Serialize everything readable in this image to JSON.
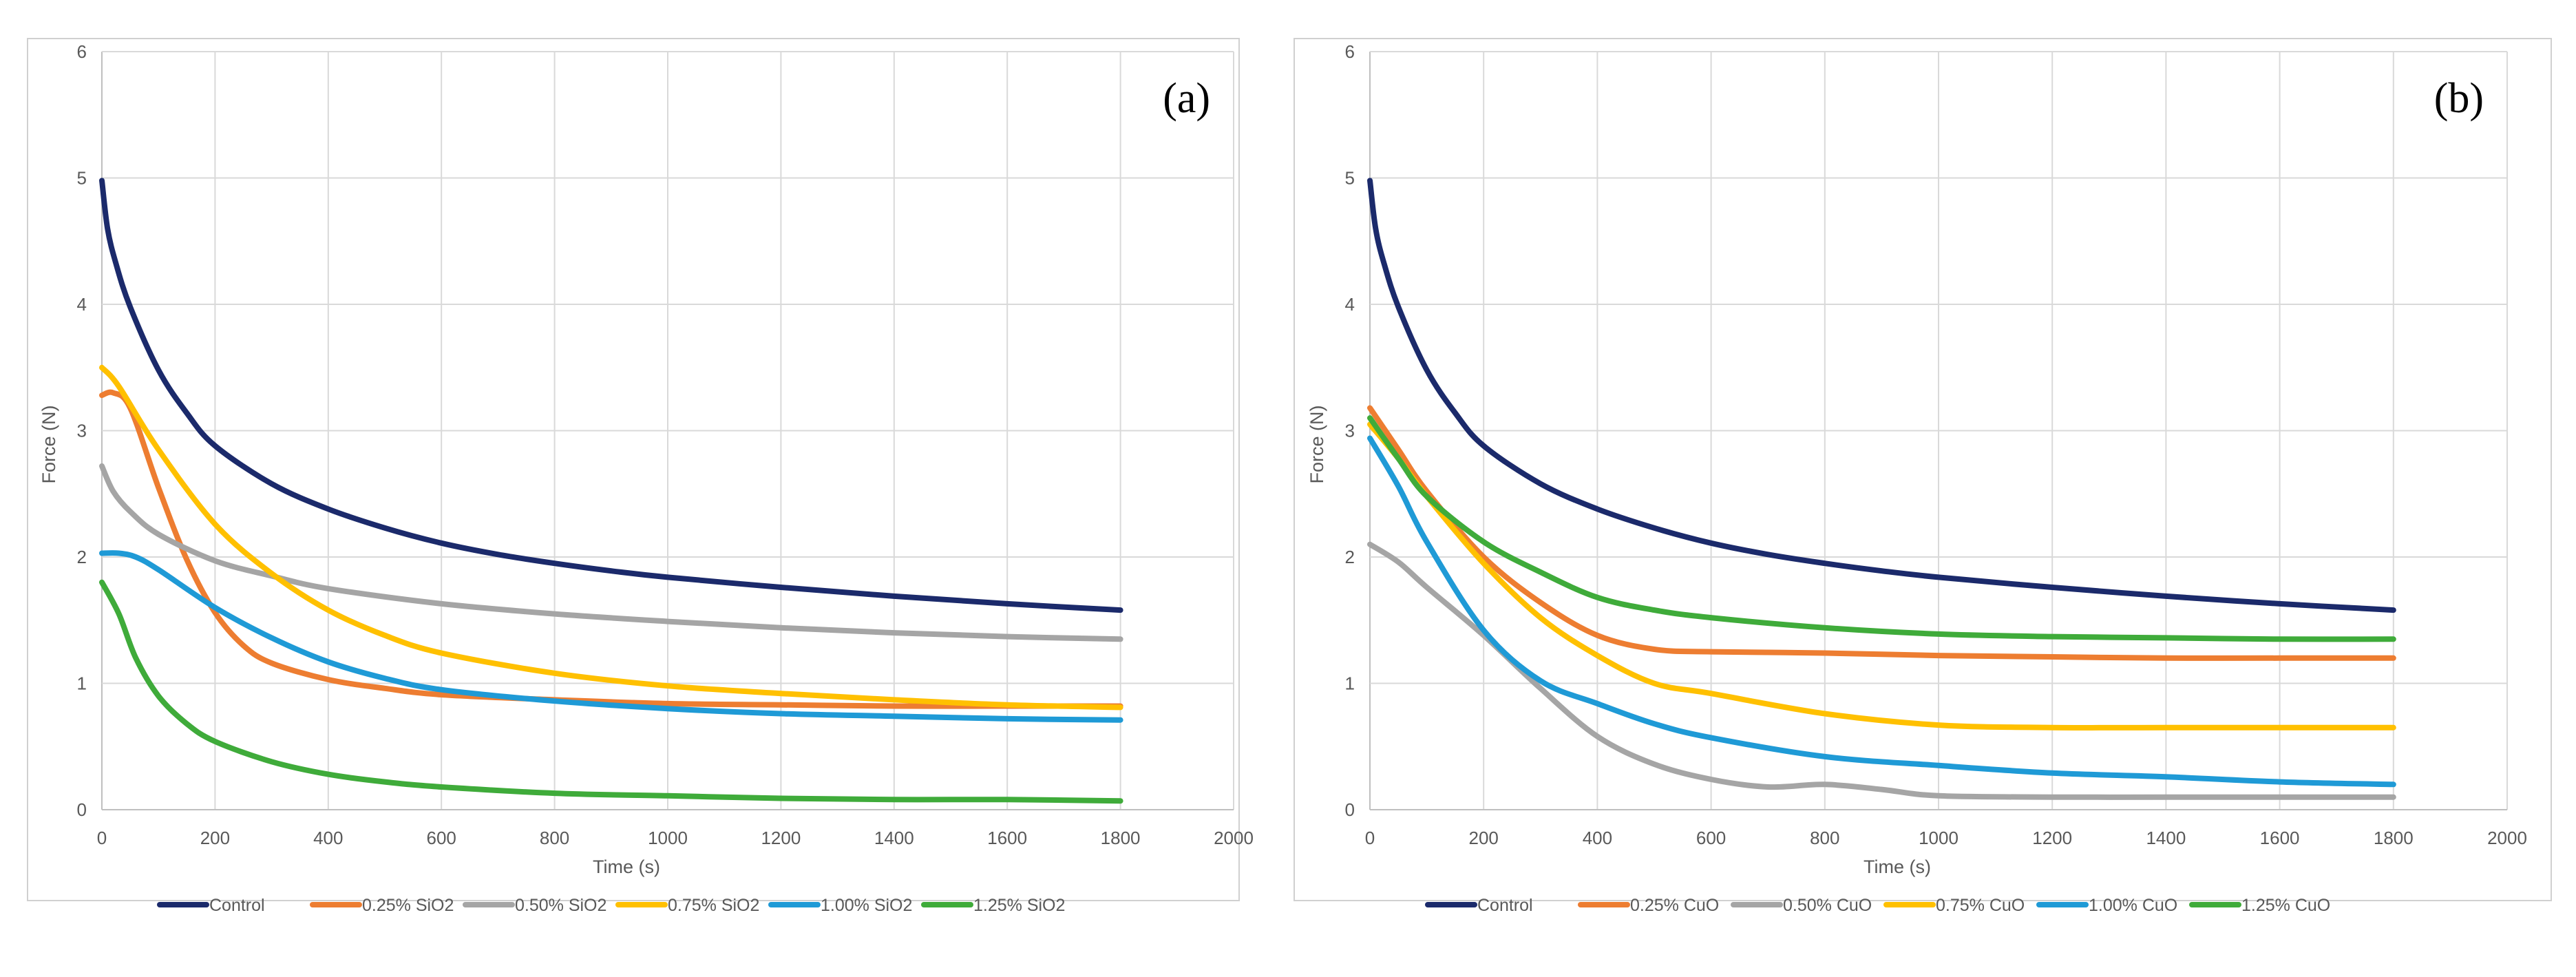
{
  "chart_data": [
    {
      "type": "line",
      "panel_label": "(a)",
      "xlabel": "Time (s)",
      "ylabel": "Force (N)",
      "xlim": [
        0,
        2000
      ],
      "ylim": [
        0,
        6
      ],
      "x_ticks": [
        "0",
        "200",
        "400",
        "600",
        "800",
        "1000",
        "1200",
        "1400",
        "1600",
        "1800",
        "2000"
      ],
      "y_ticks": [
        "0",
        "1",
        "2",
        "3",
        "4",
        "5",
        "6"
      ],
      "grid": true,
      "legend_position": "bottom",
      "series": [
        {
          "name": "Control",
          "color": "#1b2a6b",
          "points": [
            [
              0,
              4.98
            ],
            [
              10,
              4.6
            ],
            [
              25,
              4.32
            ],
            [
              50,
              3.98
            ],
            [
              100,
              3.48
            ],
            [
              150,
              3.14
            ],
            [
              200,
              2.88
            ],
            [
              300,
              2.58
            ],
            [
              400,
              2.38
            ],
            [
              500,
              2.23
            ],
            [
              600,
              2.11
            ],
            [
              700,
              2.02
            ],
            [
              800,
              1.95
            ],
            [
              900,
              1.89
            ],
            [
              1000,
              1.84
            ],
            [
              1200,
              1.76
            ],
            [
              1400,
              1.69
            ],
            [
              1600,
              1.63
            ],
            [
              1800,
              1.58
            ]
          ]
        },
        {
          "name": "0.25% SiO2",
          "color": "#ed7d31",
          "points": [
            [
              0,
              3.28
            ],
            [
              20,
              3.3
            ],
            [
              50,
              3.18
            ],
            [
              100,
              2.55
            ],
            [
              150,
              1.98
            ],
            [
              200,
              1.56
            ],
            [
              250,
              1.3
            ],
            [
              300,
              1.16
            ],
            [
              400,
              1.03
            ],
            [
              500,
              0.96
            ],
            [
              600,
              0.91
            ],
            [
              800,
              0.87
            ],
            [
              1000,
              0.84
            ],
            [
              1200,
              0.83
            ],
            [
              1400,
              0.82
            ],
            [
              1600,
              0.82
            ],
            [
              1800,
              0.82
            ]
          ]
        },
        {
          "name": "0.50% SiO2",
          "color": "#a5a5a5",
          "points": [
            [
              0,
              2.72
            ],
            [
              20,
              2.52
            ],
            [
              50,
              2.36
            ],
            [
              100,
              2.18
            ],
            [
              200,
              1.97
            ],
            [
              300,
              1.85
            ],
            [
              400,
              1.75
            ],
            [
              600,
              1.63
            ],
            [
              800,
              1.55
            ],
            [
              1000,
              1.49
            ],
            [
              1200,
              1.44
            ],
            [
              1400,
              1.4
            ],
            [
              1600,
              1.37
            ],
            [
              1800,
              1.35
            ]
          ]
        },
        {
          "name": "0.75% SiO2",
          "color": "#ffc000",
          "points": [
            [
              0,
              3.5
            ],
            [
              30,
              3.35
            ],
            [
              100,
              2.85
            ],
            [
              200,
              2.26
            ],
            [
              300,
              1.87
            ],
            [
              400,
              1.58
            ],
            [
              500,
              1.38
            ],
            [
              600,
              1.24
            ],
            [
              800,
              1.08
            ],
            [
              1000,
              0.98
            ],
            [
              1200,
              0.92
            ],
            [
              1400,
              0.87
            ],
            [
              1600,
              0.83
            ],
            [
              1800,
              0.81
            ]
          ]
        },
        {
          "name": "1.00% SiO2",
          "color": "#1f9ad6",
          "points": [
            [
              0,
              2.03
            ],
            [
              30,
              2.03
            ],
            [
              60,
              2.0
            ],
            [
              100,
              1.9
            ],
            [
              200,
              1.6
            ],
            [
              300,
              1.36
            ],
            [
              400,
              1.17
            ],
            [
              500,
              1.04
            ],
            [
              600,
              0.95
            ],
            [
              800,
              0.86
            ],
            [
              1000,
              0.8
            ],
            [
              1200,
              0.76
            ],
            [
              1400,
              0.74
            ],
            [
              1600,
              0.72
            ],
            [
              1800,
              0.71
            ]
          ]
        },
        {
          "name": "1.25% SiO2",
          "color": "#3fab3a",
          "points": [
            [
              0,
              1.8
            ],
            [
              30,
              1.55
            ],
            [
              60,
              1.2
            ],
            [
              100,
              0.9
            ],
            [
              150,
              0.68
            ],
            [
              200,
              0.54
            ],
            [
              300,
              0.38
            ],
            [
              400,
              0.28
            ],
            [
              500,
              0.22
            ],
            [
              600,
              0.18
            ],
            [
              800,
              0.13
            ],
            [
              1000,
              0.11
            ],
            [
              1200,
              0.09
            ],
            [
              1400,
              0.08
            ],
            [
              1600,
              0.08
            ],
            [
              1800,
              0.07
            ]
          ]
        }
      ]
    },
    {
      "type": "line",
      "panel_label": "(b)",
      "xlabel": "Time (s)",
      "ylabel": "Force (N)",
      "xlim": [
        0,
        2000
      ],
      "ylim": [
        0,
        6
      ],
      "x_ticks": [
        "0",
        "200",
        "400",
        "600",
        "800",
        "1000",
        "1200",
        "1400",
        "1600",
        "1800",
        "2000"
      ],
      "y_ticks": [
        "0",
        "1",
        "2",
        "3",
        "4",
        "5",
        "6"
      ],
      "grid": true,
      "legend_position": "bottom",
      "series": [
        {
          "name": "Control",
          "color": "#1b2a6b",
          "points": [
            [
              0,
              4.98
            ],
            [
              10,
              4.6
            ],
            [
              25,
              4.32
            ],
            [
              50,
              3.98
            ],
            [
              100,
              3.48
            ],
            [
              150,
              3.14
            ],
            [
              200,
              2.88
            ],
            [
              300,
              2.58
            ],
            [
              400,
              2.38
            ],
            [
              500,
              2.23
            ],
            [
              600,
              2.11
            ],
            [
              700,
              2.02
            ],
            [
              800,
              1.95
            ],
            [
              900,
              1.89
            ],
            [
              1000,
              1.84
            ],
            [
              1200,
              1.76
            ],
            [
              1400,
              1.69
            ],
            [
              1600,
              1.63
            ],
            [
              1800,
              1.58
            ]
          ]
        },
        {
          "name": "0.25% CuO",
          "color": "#ed7d31",
          "points": [
            [
              0,
              3.18
            ],
            [
              50,
              2.85
            ],
            [
              100,
              2.52
            ],
            [
              200,
              2.0
            ],
            [
              300,
              1.64
            ],
            [
              400,
              1.38
            ],
            [
              500,
              1.27
            ],
            [
              600,
              1.25
            ],
            [
              800,
              1.24
            ],
            [
              1000,
              1.22
            ],
            [
              1200,
              1.21
            ],
            [
              1400,
              1.2
            ],
            [
              1600,
              1.2
            ],
            [
              1800,
              1.2
            ]
          ]
        },
        {
          "name": "0.50% CuO",
          "color": "#a5a5a5",
          "points": [
            [
              0,
              2.1
            ],
            [
              50,
              1.96
            ],
            [
              100,
              1.76
            ],
            [
              200,
              1.38
            ],
            [
              300,
              0.96
            ],
            [
              400,
              0.58
            ],
            [
              500,
              0.36
            ],
            [
              600,
              0.24
            ],
            [
              700,
              0.18
            ],
            [
              800,
              0.2
            ],
            [
              900,
              0.16
            ],
            [
              1000,
              0.11
            ],
            [
              1200,
              0.1
            ],
            [
              1400,
              0.1
            ],
            [
              1600,
              0.1
            ],
            [
              1800,
              0.1
            ]
          ]
        },
        {
          "name": "0.75% CuO",
          "color": "#ffc000",
          "points": [
            [
              0,
              3.05
            ],
            [
              50,
              2.78
            ],
            [
              100,
              2.48
            ],
            [
              200,
              1.95
            ],
            [
              300,
              1.52
            ],
            [
              400,
              1.22
            ],
            [
              500,
              1.0
            ],
            [
              600,
              0.92
            ],
            [
              800,
              0.76
            ],
            [
              1000,
              0.67
            ],
            [
              1200,
              0.65
            ],
            [
              1400,
              0.65
            ],
            [
              1600,
              0.65
            ],
            [
              1800,
              0.65
            ]
          ]
        },
        {
          "name": "1.00% CuO",
          "color": "#1f9ad6",
          "points": [
            [
              0,
              2.94
            ],
            [
              50,
              2.56
            ],
            [
              100,
              2.12
            ],
            [
              200,
              1.42
            ],
            [
              300,
              1.02
            ],
            [
              400,
              0.84
            ],
            [
              500,
              0.68
            ],
            [
              600,
              0.57
            ],
            [
              800,
              0.42
            ],
            [
              1000,
              0.35
            ],
            [
              1200,
              0.29
            ],
            [
              1400,
              0.26
            ],
            [
              1600,
              0.22
            ],
            [
              1800,
              0.2
            ]
          ]
        },
        {
          "name": "1.25% CuO",
          "color": "#3fab3a",
          "points": [
            [
              0,
              3.1
            ],
            [
              50,
              2.78
            ],
            [
              100,
              2.48
            ],
            [
              200,
              2.12
            ],
            [
              300,
              1.88
            ],
            [
              400,
              1.68
            ],
            [
              500,
              1.58
            ],
            [
              600,
              1.52
            ],
            [
              800,
              1.44
            ],
            [
              1000,
              1.39
            ],
            [
              1200,
              1.37
            ],
            [
              1400,
              1.36
            ],
            [
              1600,
              1.35
            ],
            [
              1800,
              1.35
            ]
          ]
        }
      ]
    }
  ]
}
